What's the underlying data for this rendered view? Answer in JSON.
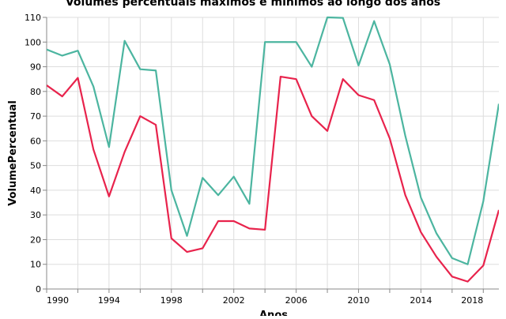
{
  "chart_data": {
    "type": "line",
    "title": "Volumes percentuais máximos e mínimos ao longo dos anos",
    "xlabel": "Anos",
    "ylabel": "VolumePercentual",
    "xlim": [
      1990,
      2019
    ],
    "ylim": [
      0,
      110
    ],
    "x_ticks": [
      "1990",
      "1994",
      "1998",
      "2002",
      "2006",
      "2010",
      "2014",
      "2018"
    ],
    "y_ticks": [
      "0",
      "10",
      "20",
      "30",
      "40",
      "50",
      "60",
      "70",
      "80",
      "90",
      "100",
      "110"
    ],
    "grid": true,
    "x": [
      1990,
      1991,
      1992,
      1993,
      1994,
      1995,
      1996,
      1997,
      1998,
      1999,
      2000,
      2001,
      2002,
      2003,
      2004,
      2005,
      2006,
      2007,
      2008,
      2009,
      2010,
      2011,
      2012,
      2013,
      2014,
      2015,
      2016,
      2017,
      2018,
      2019
    ],
    "series": [
      {
        "color": "#4cb5a0",
        "values": [
          97,
          94.5,
          96.5,
          82,
          57.5,
          100.5,
          89,
          88.5,
          40,
          21.5,
          45,
          38,
          45.5,
          34.5,
          100,
          100,
          100,
          90,
          110,
          109.8,
          90.5,
          108.5,
          91,
          62,
          37,
          22.5,
          12.5,
          10,
          35.5,
          75
        ]
      },
      {
        "color": "#e8234c",
        "values": [
          82.5,
          78,
          85.5,
          56.5,
          37.5,
          55.5,
          70,
          66.5,
          20.5,
          15,
          16.5,
          27.5,
          27.5,
          24.5,
          24,
          86,
          85,
          70,
          64,
          85,
          78.5,
          76.5,
          61,
          38,
          23,
          13,
          5,
          3,
          9.5,
          32
        ]
      }
    ]
  }
}
